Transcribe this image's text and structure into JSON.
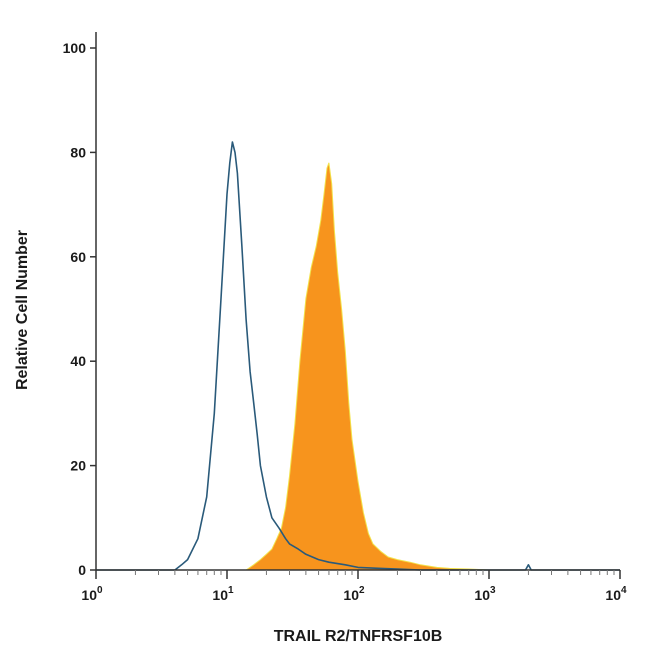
{
  "chart_data": {
    "type": "area",
    "xlabel": "TRAIL R2/TNFRSF10B",
    "ylabel": "Relative Cell Number",
    "x_scale": "log",
    "xlim": [
      1,
      10000
    ],
    "ylim": [
      0,
      100
    ],
    "y_ticks": [
      "0",
      "20",
      "40",
      "60",
      "80",
      "100"
    ],
    "x_ticks": [
      {
        "base": "10",
        "exp": "0"
      },
      {
        "base": "10",
        "exp": "1"
      },
      {
        "base": "10",
        "exp": "2"
      },
      {
        "base": "10",
        "exp": "3"
      },
      {
        "base": "10",
        "exp": "4"
      }
    ],
    "grid": false,
    "legend": "none",
    "series": [
      {
        "style": "filled",
        "color": "#f7941d",
        "edge_color": "#f2e24a",
        "x": [
          1,
          14,
          16,
          18,
          20,
          22,
          24,
          26,
          28,
          30,
          33,
          36,
          40,
          44,
          48,
          52,
          55,
          58,
          60,
          63,
          66,
          70,
          75,
          80,
          85,
          90,
          100,
          110,
          120,
          130,
          150,
          170,
          200,
          250,
          300,
          400,
          500,
          700,
          1000,
          10000
        ],
        "y": [
          0,
          0,
          1,
          2,
          3,
          4,
          6,
          8,
          12,
          18,
          28,
          40,
          52,
          58,
          62,
          67,
          72,
          77,
          78,
          74,
          65,
          57,
          50,
          42,
          32,
          25,
          17,
          11,
          7,
          5,
          3.5,
          2.5,
          2,
          1.5,
          1,
          0.5,
          0.3,
          0.2,
          0,
          0
        ]
      },
      {
        "style": "outline",
        "color": "#2a5a7a",
        "x": [
          1,
          4,
          4.5,
          5,
          6,
          7,
          8,
          9,
          10,
          10.5,
          11,
          11.5,
          12,
          13,
          14,
          15,
          16,
          17,
          18,
          20,
          22,
          25,
          28,
          30,
          35,
          40,
          50,
          60,
          80,
          100,
          150,
          200,
          300,
          1000,
          1900,
          2000,
          2100,
          10000
        ],
        "y": [
          0,
          0,
          1,
          2,
          6,
          14,
          30,
          52,
          72,
          78,
          82,
          80,
          76,
          62,
          48,
          38,
          32,
          26,
          20,
          14,
          10,
          8,
          6,
          5,
          4,
          3,
          2,
          1.5,
          1,
          0.5,
          0.3,
          0.2,
          0,
          0,
          0,
          1,
          0,
          0
        ]
      }
    ]
  }
}
